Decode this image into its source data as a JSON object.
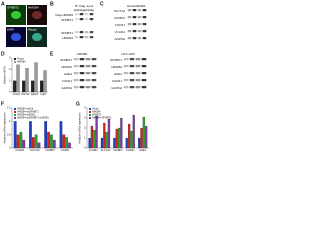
{
  "panels": {
    "a": {
      "letter": "A",
      "labels": [
        "SFMBT1",
        "HMGB4",
        "DAPI",
        "Merge"
      ]
    },
    "b": {
      "letter": "B",
      "header": [
        "IP: Flag",
        "Input"
      ],
      "lanes": [
        "IgG",
        "Flag",
        "IgG",
        "Flag"
      ],
      "rows_top": [
        "Flag-HMGB4",
        "SFMBT1"
      ],
      "rows_bottom": [
        "SFMBT1",
        "HMGB4"
      ]
    },
    "c": {
      "letter": "C",
      "lanes": [
        "Vector",
        "HMGB4"
      ],
      "rows": [
        "SLC7A2",
        "IGFBP2",
        "FGFR1",
        "VCAM1",
        "GAPDH"
      ]
    },
    "d": {
      "letter": "D",
      "chart": {
        "type": "bar",
        "ylabel": "Relative mRNA",
        "categories": [
          "Vcam1",
          "Slc7a2",
          "Igfbp2",
          "Fgfr1"
        ],
        "series": [
          {
            "name": "Vector",
            "color": "#222222",
            "values": [
              1,
              1,
              1,
              1
            ]
          },
          {
            "name": "HMGB4",
            "color": "#9a9a9a",
            "values": [
              2.4,
              2.1,
              2.6,
              1.9
            ]
          }
        ],
        "ylim": [
          0,
          3
        ],
        "yticks": [
          0,
          1,
          2,
          3
        ]
      }
    },
    "e": {
      "letter": "E",
      "header": [
        "HMGB4",
        "HCC-LM3"
      ],
      "rows": [
        "SFMBT1",
        "HMGB4",
        "ESE1",
        "FGFR1",
        "GAPDH"
      ],
      "rows_right": [
        "SFMBT1",
        "HMGB4",
        "ESE1",
        "FGFR1",
        "GAPDH"
      ]
    },
    "f": {
      "letter": "F",
      "chart": {
        "type": "bar",
        "ylabel": "Relative mRNA expression",
        "categories": [
          "VCAM1",
          "SLC7A2",
          "IGFBP2",
          "FGFR1"
        ],
        "series": [
          {
            "name": "HMGB4+shCtrl",
            "color": "#1f3fbf",
            "values": [
              1,
              1,
              1,
              1
            ]
          },
          {
            "name": "HMGB4+shSFMBT1",
            "color": "#d62020",
            "values": [
              0.5,
              0.4,
              0.6,
              0.5
            ]
          },
          {
            "name": "HMGB4+shESE1",
            "color": "#2ca02c",
            "values": [
              0.6,
              0.5,
              0.5,
              0.4
            ]
          },
          {
            "name": "HMGB4+shSFMBT1+shESE1",
            "color": "#7b3fa0",
            "values": [
              0.3,
              0.2,
              0.3,
              0.2
            ]
          }
        ],
        "ylim": [
          0,
          1.5
        ],
        "yticks": [
          0,
          0.5,
          1,
          1.5
        ]
      }
    },
    "g": {
      "letter": "G",
      "chart": {
        "type": "bar",
        "ylabel": "Relative mRNA expression",
        "categories": [
          "VCAM1",
          "SLC7A2",
          "IGFBP2",
          "FGFR1",
          "ESE1"
        ],
        "series": [
          {
            "name": "Vector",
            "color": "#1f3fbf",
            "values": [
              1,
              1,
              1,
              1,
              1
            ]
          },
          {
            "name": "HMGB4",
            "color": "#d62020",
            "values": [
              2.2,
              2.5,
              1.9,
              2.4,
              2.0
            ]
          },
          {
            "name": "SFMBT1",
            "color": "#2ca02c",
            "values": [
              1.8,
              1.6,
              2.0,
              1.7,
              3.1
            ]
          },
          {
            "name": "HMGB4+SFMBT1",
            "color": "#7b3fa0",
            "values": [
              3.2,
              2.9,
              3.0,
              3.3,
              2.2
            ]
          }
        ],
        "ylim": [
          0,
          4
        ],
        "yticks": [
          0,
          1,
          2,
          3,
          4
        ]
      }
    }
  }
}
